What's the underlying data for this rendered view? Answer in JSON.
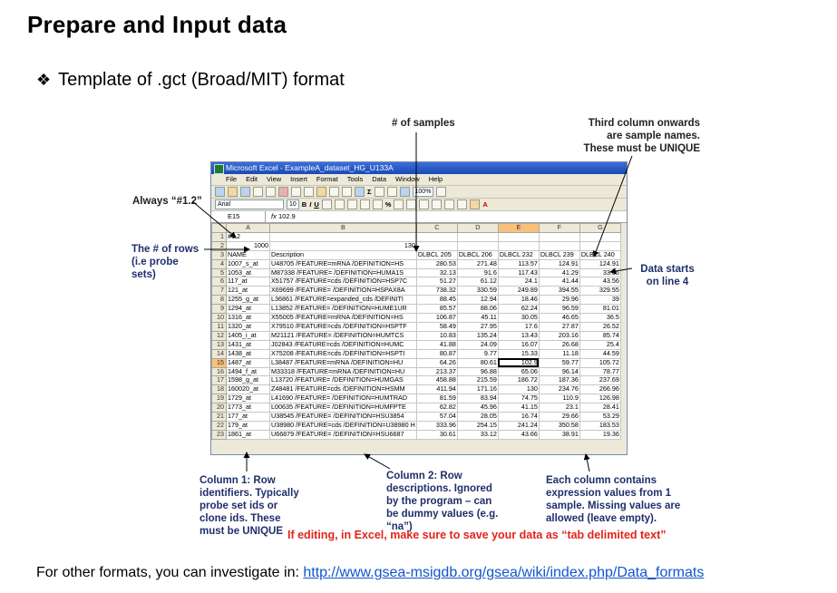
{
  "title": "Prepare and Input data",
  "subtitle": "Template of .gct (Broad/MIT) format",
  "annotations": {
    "num_samples": "# of samples",
    "third_column": "Third column onwards are sample names. These must be UNIQUE",
    "always": "Always “#1.2”",
    "num_rows": "The # of rows (i.e probe sets)",
    "data_starts": "Data starts on line 4",
    "column1": "Column 1: Row identifiers. Typically probe set ids or clone ids. These must be UNIQUE",
    "column2": "Column 2: Row descriptions. Ignored by the program – can be dummy values (e.g. “na”)",
    "each_column": "Each column contains expression values from 1 sample. Missing values are allowed (leave empty)."
  },
  "note": "If editing, in Excel, make sure to save your data as “tab delimited text”",
  "footer": {
    "prefix": "For other formats, you can investigate in: ",
    "link": "http://www.gsea-msigdb.org/gsea/wiki/index.php/Data_formats"
  },
  "excel": {
    "window_title": "Microsoft Excel - ExampleA_dataset_HG_U133A",
    "menu": [
      "File",
      "Edit",
      "View",
      "Insert",
      "Format",
      "Tools",
      "Data",
      "Window",
      "Help"
    ],
    "font_name": "Arial",
    "font_size": "10",
    "zoom": "100%",
    "name_box": "E15",
    "formula": "102.9",
    "col_headers": [
      "A",
      "B",
      "C",
      "D",
      "E",
      "F",
      "G"
    ],
    "rows": [
      [
        "1",
        "#1.2",
        "",
        "",
        "",
        "",
        "",
        ""
      ],
      [
        "2",
        "1000",
        "130",
        "",
        "",
        "",
        "",
        ""
      ],
      [
        "3",
        "NAME",
        "Description",
        "DLBCL 205",
        "DLBCL 206",
        "DLBCL 232",
        "DLBCL 239",
        "DLBCL 240"
      ],
      [
        "4",
        "1007_s_at",
        "U48705 /FEATURE=mRNA /DEFINITION=HS",
        "280.53",
        "271.48",
        "113.57",
        "124.91",
        "124.91"
      ],
      [
        "5",
        "1053_at",
        "M87338 /FEATURE= /DEFINITION=HUMA1S",
        "32.13",
        "91.6",
        "117.43",
        "41.29",
        "33.66"
      ],
      [
        "6",
        "117_at",
        "X51757 /FEATURE=cds /DEFINITION=HSP7C",
        "51.27",
        "61.12",
        "24.1",
        "41.44",
        "43.56"
      ],
      [
        "7",
        "121_at",
        "X69699 /FEATURE= /DEFINITION=HSPAX8A",
        "738.32",
        "330.59",
        "249.89",
        "394.55",
        "329.55"
      ],
      [
        "8",
        "1255_g_at",
        "L36861 /FEATURE=expanded_cds /DEFINITI",
        "88.45",
        "12.94",
        "18.46",
        "29.96",
        "39"
      ],
      [
        "9",
        "1294_at",
        "L13852 /FEATURE= /DEFINITION=HUME1UR",
        "85.57",
        "88.06",
        "62.24",
        "96.59",
        "81.01"
      ],
      [
        "10",
        "1316_at",
        "X55005 /FEATURE=mRNA /DEFINITION=HS",
        "106.87",
        "45.11",
        "30.05",
        "46.65",
        "36.5"
      ],
      [
        "11",
        "1320_at",
        "X79510 /FEATURE=cds /DEFINITION=HSPTF",
        "58.49",
        "27.95",
        "17.6",
        "27.87",
        "26.52"
      ],
      [
        "12",
        "1405_i_at",
        "M21121 /FEATURE= /DEFINITION=HUMTCS",
        "10.83",
        "135.24",
        "13.43",
        "203.16",
        "85.74"
      ],
      [
        "13",
        "1431_at",
        "J02843 /FEATURE=cds /DEFINITION=HUMC",
        "41.88",
        "24.09",
        "16.07",
        "26.68",
        "25.4"
      ],
      [
        "14",
        "1438_at",
        "X75208 /FEATURE=cds /DEFINITION=HSPTI",
        "80.87",
        "9.77",
        "15.33",
        "11.18",
        "44.59"
      ],
      [
        "15",
        "1487_at",
        "L38487 /FEATURE=mRNA /DEFINITION=HU",
        "64.26",
        "80.61",
        "102.9",
        "59.77",
        "105.72"
      ],
      [
        "16",
        "1494_f_at",
        "M33318 /FEATURE=mRNA /DEFINITION=HU",
        "213.37",
        "96.88",
        "65.06",
        "96.14",
        "78.77"
      ],
      [
        "17",
        "1598_g_at",
        "L13720 /FEATURE= /DEFINITION=HUMGAS",
        "458.88",
        "215.59",
        "186.72",
        "187.36",
        "237.69"
      ],
      [
        "18",
        "160020_at",
        "Z48481 /FEATURE=cds /DEFINITION=HSMM",
        "411.94",
        "171.16",
        "130",
        "234.76",
        "266.96"
      ],
      [
        "19",
        "1729_at",
        "L41690 /FEATURE= /DEFINITION=HUMTRAD",
        "81.59",
        "83.94",
        "74.75",
        "110.9",
        "126.98"
      ],
      [
        "20",
        "1773_at",
        "L00635 /FEATURE= /DEFINITION=HUMFPTE",
        "62.82",
        "45.96",
        "41.15",
        "23.1",
        "28.41"
      ],
      [
        "21",
        "177_at",
        "U38545 /FEATURE= /DEFINITION=HSU3854",
        "57.04",
        "28.05",
        "16.74",
        "29.66",
        "53.29"
      ],
      [
        "22",
        "179_at",
        "U38980 /FEATURE=cds /DEFINITION=U38980 H",
        "333.96",
        "254.15",
        "241.24",
        "350.58",
        "183.53"
      ],
      [
        "23",
        "1861_at",
        "U66879 /FEATURE= /DEFINITION=HSU6687",
        "30.61",
        "33.12",
        "43.66",
        "38.91",
        "19.36"
      ]
    ]
  }
}
